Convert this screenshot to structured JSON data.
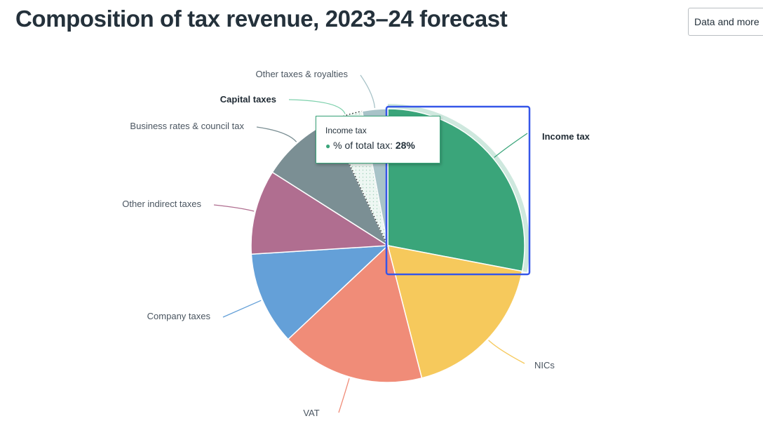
{
  "title": "Composition of tax revenue, 2023–24 forecast",
  "data_button_label": "Data and more",
  "tooltip": {
    "category": "Income tax",
    "series_label": "% of total tax:",
    "value_text": "28%",
    "dot": "●"
  },
  "chart_data": {
    "type": "pie",
    "title": "Composition of tax revenue, 2023–24 forecast",
    "series_name": "% of total tax",
    "unit": "%",
    "hovered": "Income tax",
    "slices": [
      {
        "label": "Income tax",
        "value": 28,
        "color": "#3aa57a"
      },
      {
        "label": "NICs",
        "value": 18,
        "color": "#f6c95c"
      },
      {
        "label": "VAT",
        "value": 17,
        "color": "#f08c78"
      },
      {
        "label": "Company taxes",
        "value": 11,
        "color": "#64a0d8"
      },
      {
        "label": "Other indirect taxes",
        "value": 10,
        "color": "#b06e90"
      },
      {
        "label": "Business rates & council tax",
        "value": 9,
        "color": "#7b8f94"
      },
      {
        "label": "Capital taxes",
        "value": 4,
        "color": "#eef7f3",
        "pattern": "dotted"
      },
      {
        "label": "Other taxes & royalties",
        "value": 3,
        "color": "#a8c3c8"
      }
    ]
  }
}
